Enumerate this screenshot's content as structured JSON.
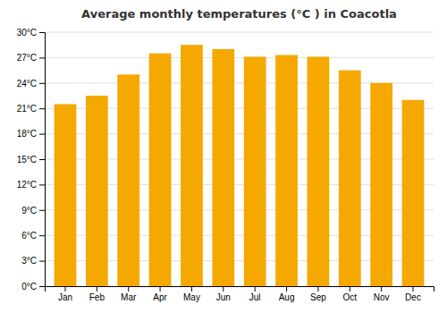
{
  "chart_data": {
    "type": "bar",
    "title": "Average monthly temperatures (°C ) in Coacotla",
    "categories": [
      "Jan",
      "Feb",
      "Mar",
      "Apr",
      "May",
      "Jun",
      "Jul",
      "Aug",
      "Sep",
      "Oct",
      "Nov",
      "Dec"
    ],
    "values": [
      21.5,
      22.5,
      25.0,
      27.5,
      28.5,
      28.0,
      27.1,
      27.3,
      27.1,
      25.5,
      24.0,
      22.0
    ],
    "color": "#F5A800",
    "ylim": [
      0,
      30
    ],
    "yticks": [
      {
        "value": 0,
        "label": "0°C"
      },
      {
        "value": 3,
        "label": "3°C"
      },
      {
        "value": 6,
        "label": "6°C"
      },
      {
        "value": 9,
        "label": "9°C"
      },
      {
        "value": 12,
        "label": "12°C"
      },
      {
        "value": 15,
        "label": "15°C"
      },
      {
        "value": 18,
        "label": "18°C"
      },
      {
        "value": 21,
        "label": "21°C"
      },
      {
        "value": 24,
        "label": "24°C"
      },
      {
        "value": 27,
        "label": "27°C"
      },
      {
        "value": 30,
        "label": "30°C"
      }
    ],
    "grid": true
  }
}
